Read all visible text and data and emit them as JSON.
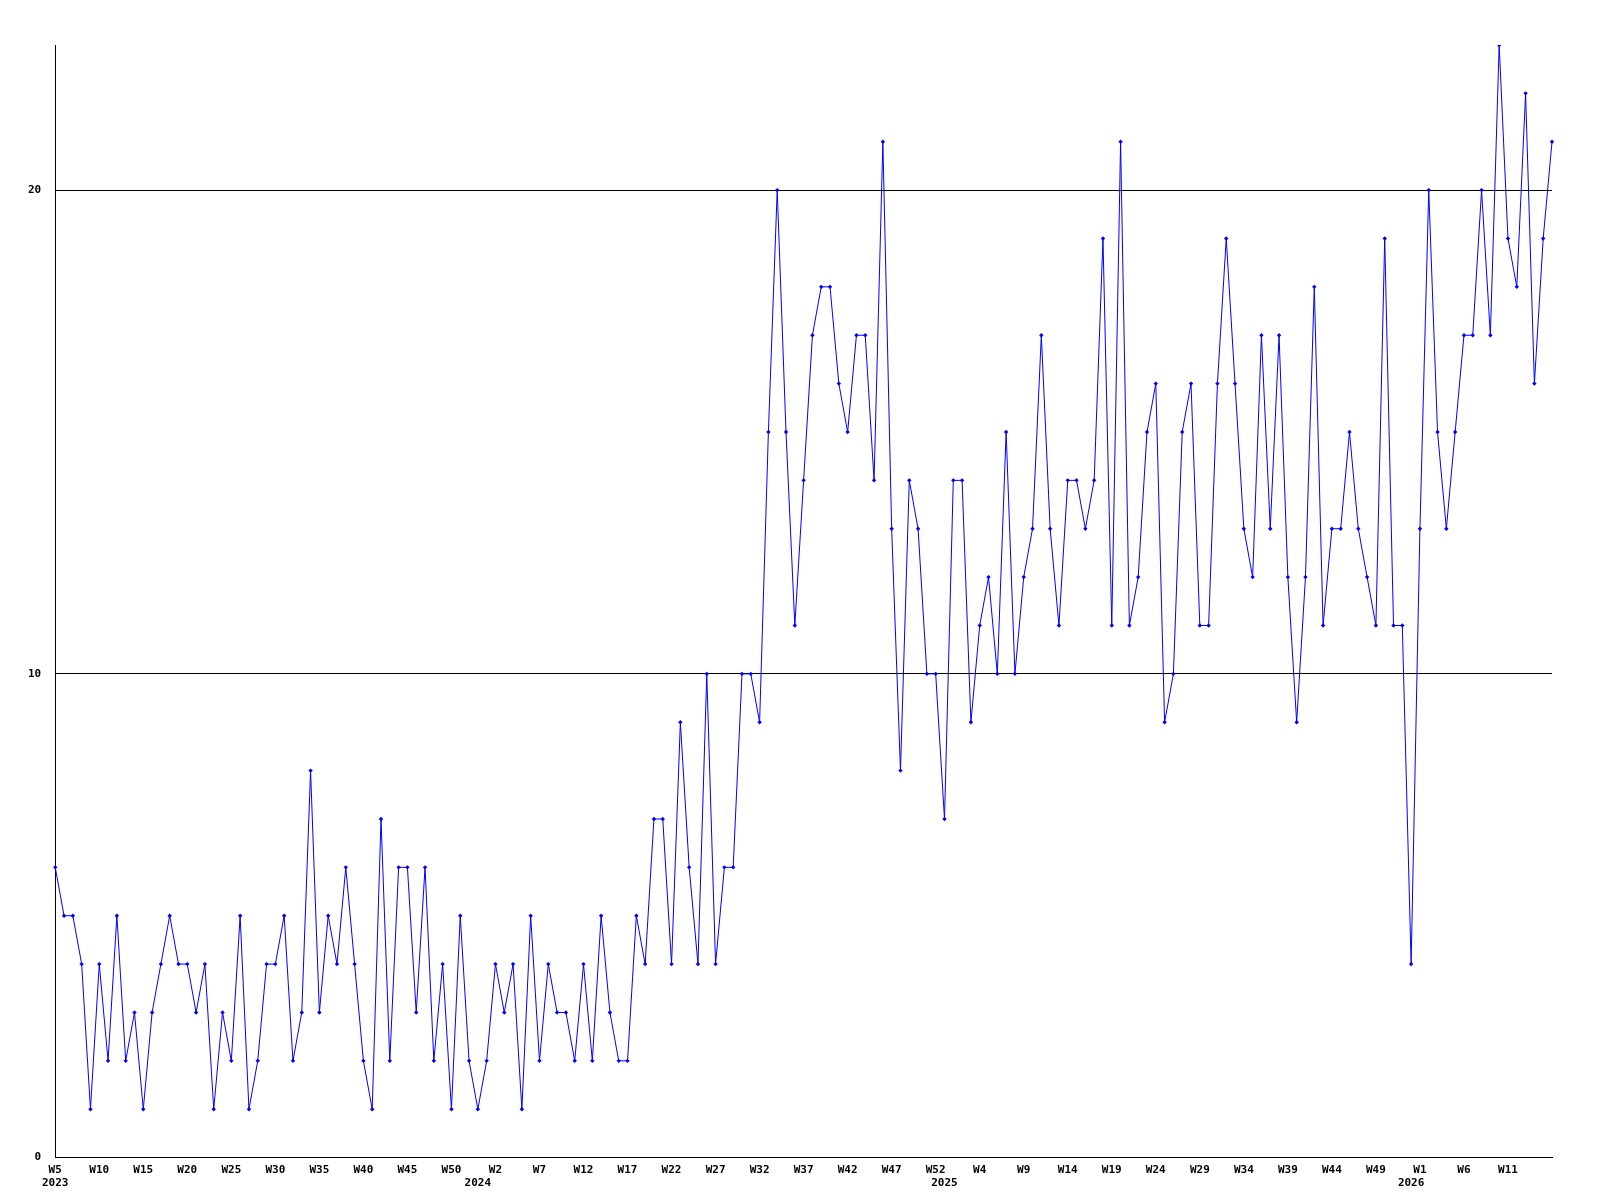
{
  "chart_data": {
    "type": "line",
    "categories": [
      "W5\n2023",
      null,
      null,
      null,
      null,
      "W10",
      null,
      null,
      null,
      null,
      "W15",
      null,
      null,
      null,
      null,
      "W20",
      null,
      null,
      null,
      null,
      "W25",
      null,
      null,
      null,
      null,
      "W30",
      null,
      null,
      null,
      null,
      "W35",
      null,
      null,
      null,
      null,
      "W40",
      null,
      null,
      null,
      null,
      "W45",
      null,
      null,
      null,
      null,
      "W50",
      null,
      null,
      "\n2024",
      null,
      "W2",
      null,
      null,
      null,
      null,
      "W7",
      null,
      null,
      null,
      null,
      "W12",
      null,
      null,
      null,
      null,
      "W17",
      null,
      null,
      null,
      null,
      "W22",
      null,
      null,
      null,
      null,
      "W27",
      null,
      null,
      null,
      null,
      "W32",
      null,
      null,
      null,
      null,
      "W37",
      null,
      null,
      null,
      null,
      "W42",
      null,
      null,
      null,
      null,
      "W47",
      null,
      null,
      null,
      null,
      "W52",
      "\n2025",
      null,
      null,
      null,
      "W4",
      null,
      null,
      null,
      null,
      "W9",
      null,
      null,
      null,
      null,
      "W14",
      null,
      null,
      null,
      null,
      "W19",
      null,
      null,
      null,
      null,
      "W24",
      null,
      null,
      null,
      null,
      "W29",
      null,
      null,
      null,
      null,
      "W34",
      null,
      null,
      null,
      null,
      "W39",
      null,
      null,
      null,
      null,
      "W44",
      null,
      null,
      null,
      null,
      "W49",
      null,
      null,
      null,
      "\n2026",
      "W1",
      null,
      null,
      null,
      null,
      "W6",
      null,
      null,
      null,
      null,
      "W11",
      null,
      null,
      null,
      null,
      null
    ],
    "series": [
      {
        "color": "#0000ff",
        "values": [
          6,
          5,
          5,
          4,
          1,
          4,
          2,
          5,
          2,
          3,
          1,
          3,
          4,
          5,
          4,
          4,
          3,
          4,
          1,
          3,
          2,
          5,
          1,
          2,
          4,
          4,
          5,
          2,
          3,
          8,
          3,
          5,
          4,
          6,
          4,
          2,
          1,
          7,
          2,
          6,
          6,
          3,
          6,
          2,
          4,
          1,
          5,
          2,
          1,
          2,
          4,
          3,
          4,
          1,
          5,
          2,
          4,
          3,
          3,
          2,
          4,
          2,
          5,
          3,
          2,
          2,
          5,
          4,
          7,
          7,
          4,
          9,
          6,
          4,
          10,
          4,
          6,
          6,
          10,
          10,
          9,
          15,
          20,
          15,
          11,
          14,
          17,
          18,
          18,
          16,
          15,
          17,
          17,
          14,
          21,
          13,
          8,
          14,
          13,
          10,
          10,
          7,
          14,
          14,
          9,
          11,
          12,
          10,
          15,
          10,
          12,
          13,
          17,
          13,
          11,
          14,
          14,
          13,
          14,
          19,
          11,
          21,
          11,
          12,
          15,
          16,
          9,
          10,
          15,
          16,
          11,
          11,
          16,
          19,
          16,
          13,
          12,
          17,
          13,
          17,
          12,
          9,
          12,
          18,
          11,
          13,
          13,
          15,
          13,
          12,
          11,
          19,
          11,
          11,
          4,
          13,
          20,
          15,
          13,
          15,
          17,
          17,
          20,
          17,
          23,
          19,
          18,
          22,
          16,
          19,
          21
        ]
      }
    ],
    "ylim": [
      0,
      23
    ],
    "yticks": [
      0,
      10,
      20
    ],
    "grid": "y",
    "marker": "diamond",
    "line_style": "solid",
    "legend": false
  }
}
